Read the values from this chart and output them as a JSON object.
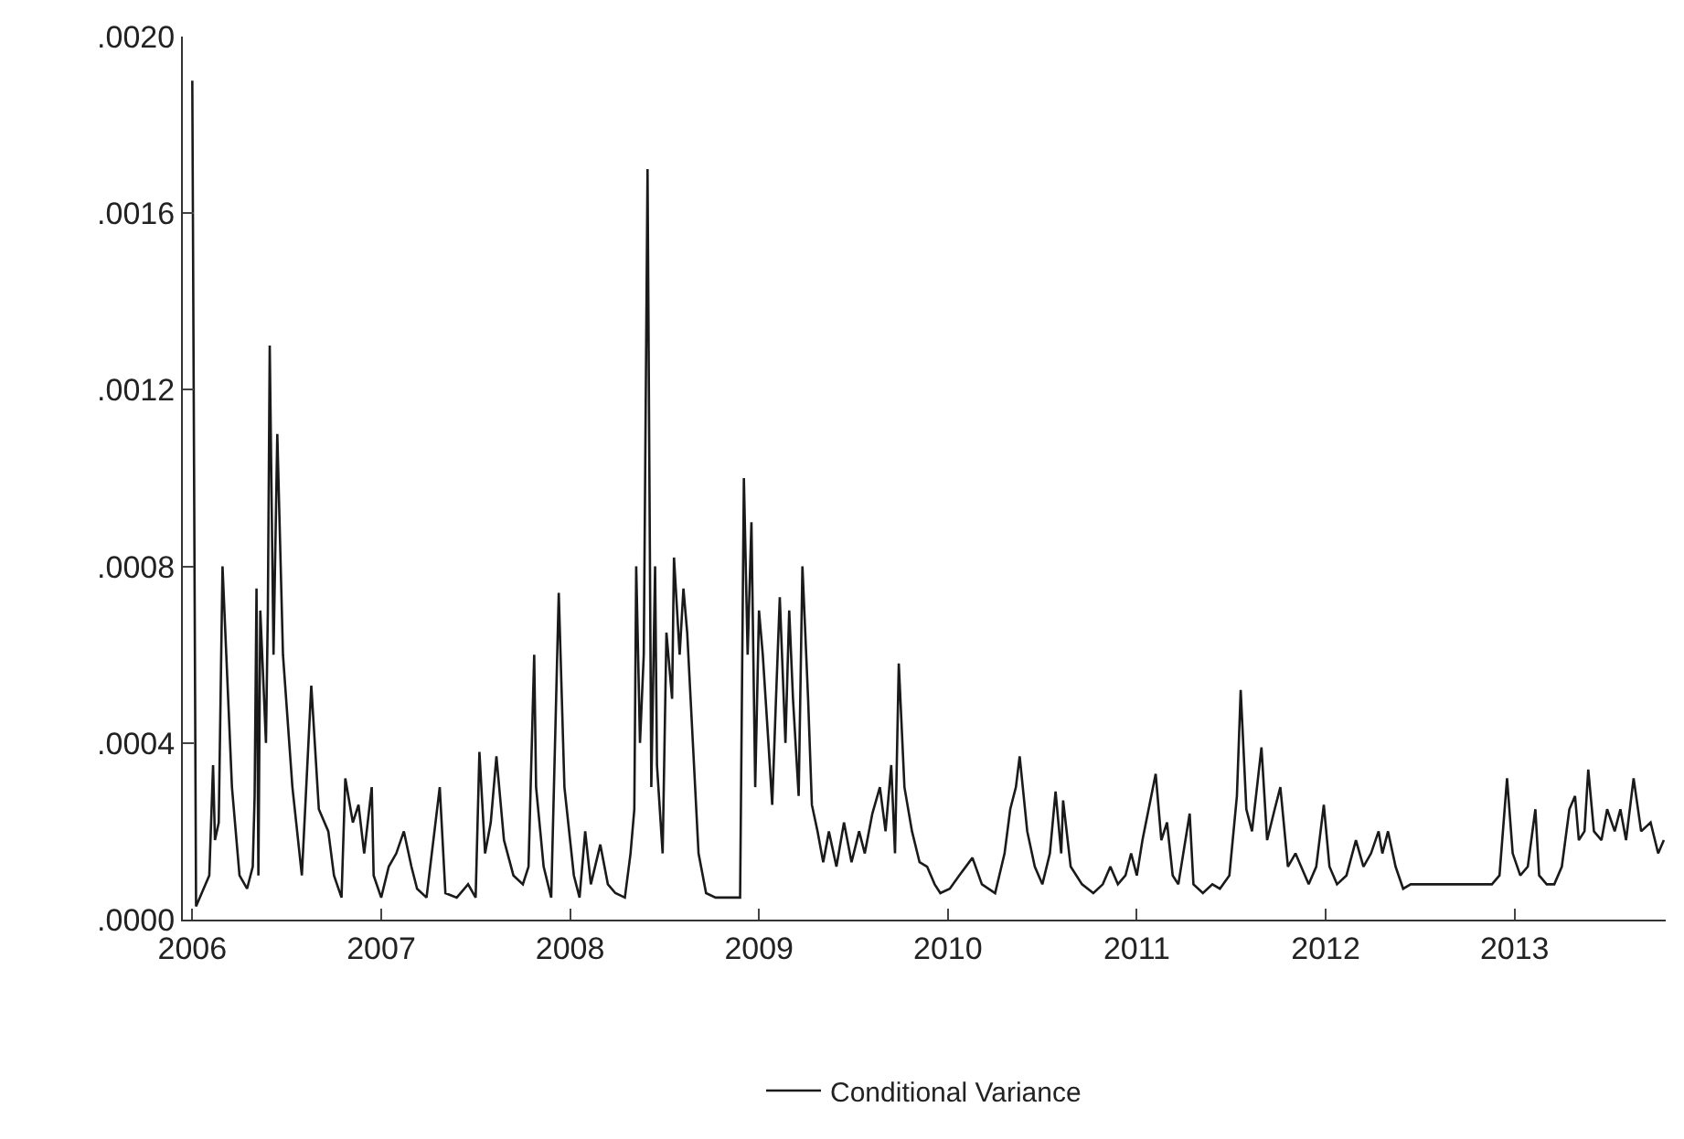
{
  "chart_data": {
    "type": "line",
    "legend": "bottom",
    "grid": false,
    "line_style": "solid",
    "marker": "none",
    "xlim": [
      2005.95,
      2013.8
    ],
    "xticks": [
      2006,
      2007,
      2008,
      2009,
      2010,
      2011,
      2012,
      2013
    ],
    "ylim": [
      0,
      0.002
    ],
    "yticks": [
      {
        "value": 0,
        "label": ".0000"
      },
      {
        "value": 0.0004,
        "label": ".0004"
      },
      {
        "value": 0.0008,
        "label": ".0008"
      },
      {
        "value": 0.0012,
        "label": ".0012"
      },
      {
        "value": 0.0016,
        "label": ".0016"
      },
      {
        "value": 0.002,
        "label": ".0020"
      }
    ],
    "series": [
      {
        "name": "Conditional Variance",
        "color": "#1a1a1a",
        "x": [
          2006.0,
          2006.02,
          2006.05,
          2006.09,
          2006.11,
          2006.12,
          2006.14,
          2006.16,
          2006.18,
          2006.21,
          2006.25,
          2006.29,
          2006.32,
          2006.33,
          2006.34,
          2006.35,
          2006.36,
          2006.39,
          2006.4,
          2006.41,
          2006.43,
          2006.45,
          2006.48,
          2006.53,
          2006.58,
          2006.63,
          2006.67,
          2006.72,
          2006.75,
          2006.79,
          2006.81,
          2006.85,
          2006.88,
          2006.91,
          2006.95,
          2006.96,
          2007.0,
          2007.04,
          2007.08,
          2007.12,
          2007.16,
          2007.19,
          2007.24,
          2007.31,
          2007.34,
          2007.4,
          2007.46,
          2007.5,
          2007.52,
          2007.55,
          2007.58,
          2007.61,
          2007.65,
          2007.7,
          2007.75,
          2007.78,
          2007.81,
          2007.82,
          2007.86,
          2007.9,
          2007.94,
          2007.97,
          2008.02,
          2008.05,
          2008.08,
          2008.11,
          2008.16,
          2008.2,
          2008.24,
          2008.29,
          2008.32,
          2008.34,
          2008.35,
          2008.37,
          2008.39,
          2008.41,
          2008.43,
          2008.45,
          2008.46,
          2008.49,
          2008.51,
          2008.54,
          2008.55,
          2008.58,
          2008.6,
          2008.62,
          2008.65,
          2008.68,
          2008.72,
          2008.77,
          2008.9,
          2008.92,
          2008.94,
          2008.96,
          2008.98,
          2009.0,
          2009.02,
          2009.05,
          2009.07,
          2009.09,
          2009.11,
          2009.14,
          2009.16,
          2009.18,
          2009.21,
          2009.23,
          2009.26,
          2009.28,
          2009.31,
          2009.34,
          2009.37,
          2009.41,
          2009.45,
          2009.49,
          2009.53,
          2009.56,
          2009.6,
          2009.64,
          2009.67,
          2009.7,
          2009.72,
          2009.74,
          2009.77,
          2009.81,
          2009.85,
          2009.89,
          2009.93,
          2009.96,
          2010.01,
          2010.06,
          2010.13,
          2010.18,
          2010.25,
          2010.3,
          2010.33,
          2010.36,
          2010.38,
          2010.42,
          2010.46,
          2010.5,
          2010.54,
          2010.57,
          2010.6,
          2010.61,
          2010.65,
          2010.71,
          2010.77,
          2010.82,
          2010.86,
          2010.9,
          2010.94,
          2010.97,
          2011.0,
          2011.03,
          2011.1,
          2011.13,
          2011.16,
          2011.19,
          2011.22,
          2011.28,
          2011.3,
          2011.35,
          2011.4,
          2011.44,
          2011.49,
          2011.53,
          2011.55,
          2011.58,
          2011.61,
          2011.66,
          2011.69,
          2011.73,
          2011.76,
          2011.8,
          2011.84,
          2011.87,
          2011.91,
          2011.95,
          2011.99,
          2012.02,
          2012.06,
          2012.11,
          2012.16,
          2012.2,
          2012.24,
          2012.28,
          2012.3,
          2012.33,
          2012.37,
          2012.41,
          2012.45,
          2012.64,
          2012.88,
          2012.92,
          2012.96,
          2012.99,
          2013.03,
          2013.07,
          2013.11,
          2013.13,
          2013.17,
          2013.21,
          2013.25,
          2013.29,
          2013.32,
          2013.34,
          2013.37,
          2013.39,
          2013.42,
          2013.46,
          2013.49,
          2013.53,
          2013.56,
          2013.59,
          2013.63,
          2013.67,
          2013.72,
          2013.76,
          2013.79
        ],
        "values": [
          0.0019,
          3e-05,
          6e-05,
          0.0001,
          0.00035,
          0.00018,
          0.00022,
          0.0008,
          0.0006,
          0.0003,
          0.0001,
          7e-05,
          0.00012,
          0.00028,
          0.00075,
          0.0001,
          0.0007,
          0.0004,
          0.0007,
          0.0013,
          0.0006,
          0.0011,
          0.0006,
          0.0003,
          0.0001,
          0.00053,
          0.00025,
          0.0002,
          0.0001,
          5e-05,
          0.00032,
          0.00022,
          0.00026,
          0.00015,
          0.0003,
          0.0001,
          5e-05,
          0.00012,
          0.00015,
          0.0002,
          0.00012,
          7e-05,
          5e-05,
          0.0003,
          6e-05,
          5e-05,
          8e-05,
          5e-05,
          0.00038,
          0.00015,
          0.00022,
          0.00037,
          0.00018,
          0.0001,
          8e-05,
          0.00012,
          0.0006,
          0.0003,
          0.00012,
          5e-05,
          0.00074,
          0.0003,
          0.0001,
          5e-05,
          0.0002,
          8e-05,
          0.00017,
          8e-05,
          6e-05,
          5e-05,
          0.00015,
          0.00025,
          0.0008,
          0.0004,
          0.0006,
          0.0017,
          0.0003,
          0.0008,
          0.00035,
          0.00015,
          0.00065,
          0.0005,
          0.00082,
          0.0006,
          0.00075,
          0.00065,
          0.0004,
          0.00015,
          6e-05,
          5e-05,
          5e-05,
          0.001,
          0.0006,
          0.0009,
          0.0003,
          0.0007,
          0.0006,
          0.0004,
          0.00026,
          0.0005,
          0.00073,
          0.0004,
          0.0007,
          0.0005,
          0.00028,
          0.0008,
          0.0005,
          0.00026,
          0.0002,
          0.00013,
          0.0002,
          0.00012,
          0.00022,
          0.00013,
          0.0002,
          0.00015,
          0.00024,
          0.0003,
          0.0002,
          0.00035,
          0.00015,
          0.00058,
          0.0003,
          0.0002,
          0.00013,
          0.00012,
          8e-05,
          6e-05,
          7e-05,
          0.0001,
          0.00014,
          8e-05,
          6e-05,
          0.00015,
          0.00025,
          0.0003,
          0.00037,
          0.0002,
          0.00012,
          8e-05,
          0.00015,
          0.00029,
          0.00015,
          0.00027,
          0.00012,
          8e-05,
          6e-05,
          8e-05,
          0.00012,
          8e-05,
          0.0001,
          0.00015,
          0.0001,
          0.00018,
          0.00033,
          0.00018,
          0.00022,
          0.0001,
          8e-05,
          0.00024,
          8e-05,
          6e-05,
          8e-05,
          7e-05,
          0.0001,
          0.00028,
          0.00052,
          0.00025,
          0.0002,
          0.00039,
          0.00018,
          0.00025,
          0.0003,
          0.00012,
          0.00015,
          0.00012,
          8e-05,
          0.00012,
          0.00026,
          0.00012,
          8e-05,
          0.0001,
          0.00018,
          0.00012,
          0.00015,
          0.0002,
          0.00015,
          0.0002,
          0.00012,
          7e-05,
          8e-05,
          8e-05,
          8e-05,
          0.0001,
          0.00032,
          0.00015,
          0.0001,
          0.00012,
          0.00025,
          0.0001,
          8e-05,
          8e-05,
          0.00012,
          0.00025,
          0.00028,
          0.00018,
          0.0002,
          0.00034,
          0.0002,
          0.00018,
          0.00025,
          0.0002,
          0.00025,
          0.00018,
          0.00032,
          0.0002,
          0.00022,
          0.00015,
          0.00018
        ]
      }
    ]
  }
}
